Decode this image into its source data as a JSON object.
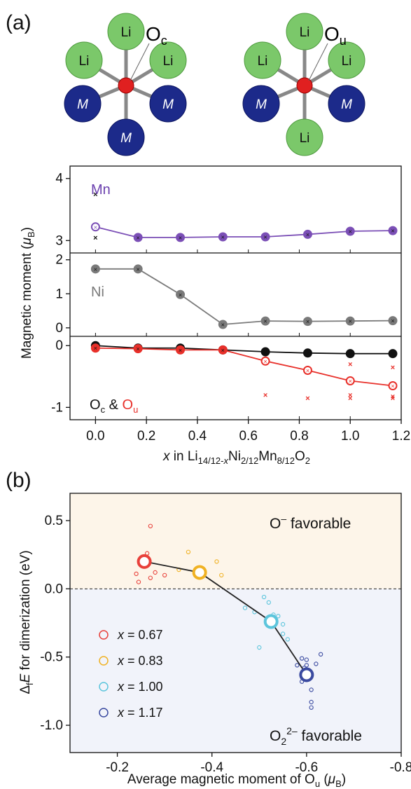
{
  "panel_a": {
    "label": "(a)",
    "structure_left": {
      "center_label": "O",
      "center_sub": "c",
      "top": "Li",
      "upper_left": "Li",
      "upper_right": "Li",
      "lower_left": "M",
      "lower_right": "M",
      "bottom": "M"
    },
    "structure_right": {
      "center_label": "O",
      "center_sub": "u",
      "top": "Li",
      "upper_left": "Li",
      "upper_right": "Li",
      "lower_left": "M",
      "lower_right": "M",
      "bottom": "Li"
    },
    "ylabel": "Magnetic moment (",
    "ylabel_sym": "μ",
    "ylabel_sub": "B",
    "ylabel_close": ")",
    "xlabel_x": "x",
    "xlabel_in": " in Li",
    "xlabel_sub1": "14/12-",
    "xlabel_sub1_it": "x",
    "xlabel_ni": "Ni",
    "xlabel_sub2": "2/12",
    "xlabel_mn": "Mn",
    "xlabel_sub3": "8/12",
    "xlabel_o": "O",
    "xlabel_sub4": "2",
    "sub_mn_label": "Mn",
    "sub_ni_label": "Ni",
    "sub_o_label_oc": "O",
    "sub_o_label_oc_sub": "c",
    "sub_o_label_amp": " & ",
    "sub_o_label_ou": "O",
    "sub_o_label_ou_sub": "u"
  },
  "panel_b": {
    "label": "(b)",
    "ylabel_delta": "Δ",
    "ylabel_f": "f",
    "ylabel_E": "E",
    "ylabel_rest": " for dimerization (eV)",
    "xlabel": "Average magnetic moment of O",
    "xlabel_sub": "u",
    "xlabel_paren": " (",
    "xlabel_mu": "μ",
    "xlabel_musub": "B",
    "xlabel_close": ")",
    "annot_top": "O",
    "annot_top_sup": "–",
    "annot_top_rest": " favorable",
    "annot_bottom": "O",
    "annot_bottom_sub": "2",
    "annot_bottom_sup": "2–",
    "annot_bottom_rest": " favorable",
    "legend_x": "x",
    "legend": [
      {
        "label": " = 0.67",
        "color": "#e8403a"
      },
      {
        "label": " = 0.83",
        "color": "#f0b224"
      },
      {
        "label": " = 1.00",
        "color": "#5cc5dc"
      },
      {
        "label": " = 1.17",
        "color": "#3a4aa0"
      }
    ]
  },
  "chart_data": [
    {
      "type": "line",
      "title": "Mn",
      "x": [
        0,
        0.167,
        0.333,
        0.5,
        0.667,
        0.833,
        1.0,
        1.167
      ],
      "series": [
        {
          "name": "Mn",
          "values": [
            3.22,
            3.05,
            3.05,
            3.06,
            3.06,
            3.1,
            3.15,
            3.16
          ],
          "color": "#7b4fb6"
        }
      ],
      "extra_points_x0": [
        3.75,
        3.05
      ],
      "ylim": [
        2.8,
        4.2
      ],
      "yticks": [
        3,
        4
      ],
      "xlim": [
        -0.1,
        1.2
      ]
    },
    {
      "type": "line",
      "title": "Ni",
      "x": [
        0,
        0.167,
        0.333,
        0.5,
        0.667,
        0.833,
        1.0,
        1.167
      ],
      "series": [
        {
          "name": "Ni",
          "values": [
            1.73,
            1.73,
            0.98,
            0.1,
            0.2,
            0.19,
            0.2,
            0.21
          ],
          "color": "#7a7a7a"
        }
      ],
      "ylim": [
        -0.25,
        2.2
      ],
      "yticks": [
        0,
        1,
        2
      ],
      "xlim": [
        -0.1,
        1.2
      ]
    },
    {
      "type": "line",
      "title": "Oc & Ou",
      "x": [
        0,
        0.167,
        0.333,
        0.5,
        0.667,
        0.833,
        1.0,
        1.167
      ],
      "series": [
        {
          "name": "Oc",
          "values": [
            0.0,
            -0.04,
            -0.04,
            -0.07,
            -0.1,
            -0.12,
            -0.13,
            -0.13
          ],
          "color": "#111111"
        },
        {
          "name": "Ou",
          "values": [
            -0.04,
            -0.05,
            -0.07,
            -0.07,
            -0.25,
            -0.4,
            -0.57,
            -0.65
          ],
          "color": "#e8302a"
        }
      ],
      "ou_scatter": [
        [
          0.667,
          -0.8
        ],
        [
          0.833,
          -0.85
        ],
        [
          1.0,
          -0.3
        ],
        [
          1.0,
          -0.85
        ],
        [
          1.0,
          -0.8
        ],
        [
          1.167,
          -0.35
        ],
        [
          1.167,
          -0.85
        ],
        [
          1.167,
          -0.82
        ]
      ],
      "ylim": [
        -1.2,
        0.15
      ],
      "yticks": [
        -1,
        0
      ],
      "xlim": [
        -0.1,
        1.2
      ],
      "xticks": [
        0.0,
        0.2,
        0.4,
        0.6,
        0.8,
        1.0,
        1.2
      ]
    },
    {
      "type": "scatter",
      "xlim": [
        -0.1,
        -0.8
      ],
      "ylim": [
        -1.2,
        0.7
      ],
      "xticks": [
        -0.2,
        -0.4,
        -0.6,
        -0.8
      ],
      "yticks": [
        0.5,
        0.0,
        -0.5,
        -1.0
      ],
      "mean_line": [
        [
          -0.257,
          0.2
        ],
        [
          -0.374,
          0.12
        ],
        [
          -0.525,
          -0.24
        ],
        [
          -0.6,
          -0.63
        ]
      ],
      "series": [
        {
          "name": "x = 0.67",
          "color": "#e8403a",
          "mean": [
            -0.257,
            0.2
          ],
          "points": [
            [
              -0.263,
              0.26
            ],
            [
              -0.27,
              0.46
            ],
            [
              -0.24,
              0.11
            ],
            [
              -0.245,
              0.05
            ],
            [
              -0.27,
              0.08
            ],
            [
              -0.3,
              0.1
            ],
            [
              -0.258,
              0.21
            ],
            [
              -0.28,
              0.12
            ]
          ]
        },
        {
          "name": "x = 0.83",
          "color": "#f0b224",
          "mean": [
            -0.374,
            0.12
          ],
          "points": [
            [
              -0.35,
              0.27
            ],
            [
              -0.41,
              0.2
            ],
            [
              -0.42,
              0.1
            ],
            [
              -0.38,
              0.12
            ],
            [
              -0.33,
              0.14
            ]
          ]
        },
        {
          "name": "x = 1.00",
          "color": "#5cc5dc",
          "mean": [
            -0.525,
            -0.24
          ],
          "points": [
            [
              -0.47,
              -0.14
            ],
            [
              -0.49,
              -0.17
            ],
            [
              -0.51,
              -0.06
            ],
            [
              -0.52,
              -0.1
            ],
            [
              -0.53,
              -0.19
            ],
            [
              -0.54,
              -0.2
            ],
            [
              -0.55,
              -0.33
            ],
            [
              -0.56,
              -0.37
            ],
            [
              -0.5,
              -0.43
            ],
            [
              -0.55,
              -0.26
            ]
          ]
        },
        {
          "name": "x = 1.17",
          "color": "#3a4aa0",
          "mean": [
            -0.6,
            -0.63
          ],
          "points": [
            [
              -0.58,
              -0.56
            ],
            [
              -0.59,
              -0.51
            ],
            [
              -0.6,
              -0.52
            ],
            [
              -0.6,
              -0.56
            ],
            [
              -0.61,
              -0.63
            ],
            [
              -0.61,
              -0.74
            ],
            [
              -0.61,
              -0.83
            ],
            [
              -0.61,
              -0.87
            ],
            [
              -0.62,
              -0.55
            ],
            [
              -0.63,
              -0.48
            ],
            [
              -0.59,
              -0.68
            ],
            [
              -0.595,
              -0.58
            ]
          ]
        }
      ]
    }
  ]
}
